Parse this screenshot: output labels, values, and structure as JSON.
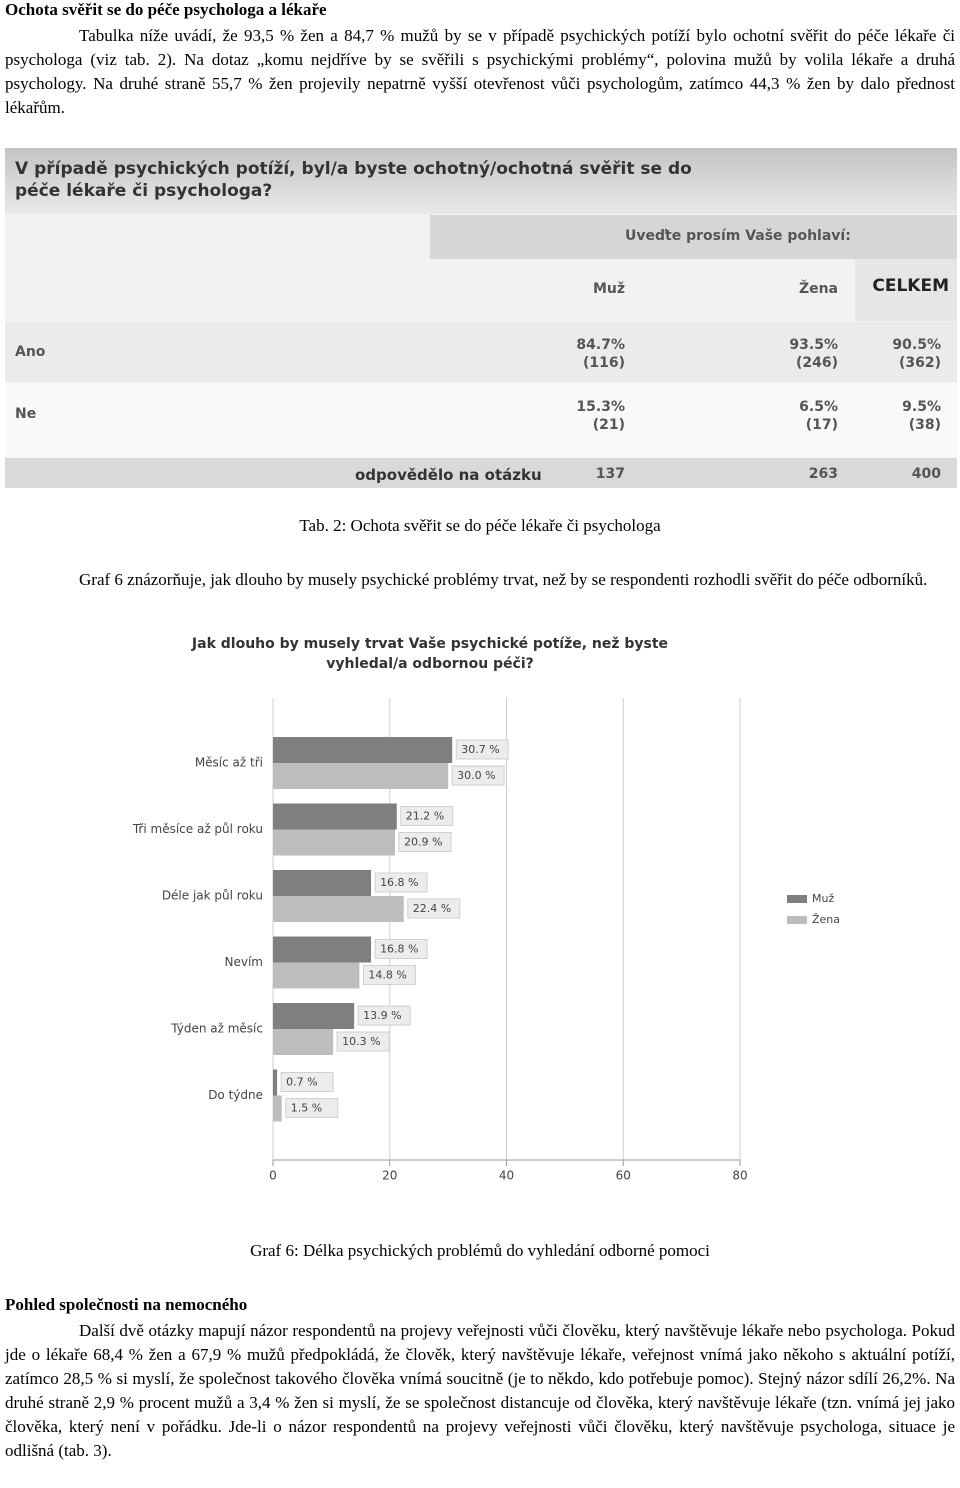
{
  "section1": {
    "heading": "Ochota svěřit se do péče psychologa a lékaře",
    "paragraph": "Tabulka níže uvádí, že 93,5 % žen a 84,7 % mužů by se v případě psychických potíží bylo ochotní svěřit do péče lékaře či psychologa (viz tab. 2). Na dotaz „komu nejdříve by se svěřili s psychickými problémy“, polovina mužů by volila lékaře a druhá psychology. Na druhé straně 55,7 % žen projevily nepatrně vyšší otevřenost vůči psychologům, zatímco 44,3 % žen by dalo přednost lékařům."
  },
  "table": {
    "title": "V případě psychických potíží, byl/a byste ochotný/ochotná svěřit se do péče lékaře či psychologa?",
    "group_header": "Uveďte prosím Vaše pohlaví:",
    "columns": [
      "Muž",
      "Žena",
      "CELKEM"
    ],
    "rows": [
      {
        "label": "Ano",
        "cells": [
          [
            "84.7%",
            "(116)"
          ],
          [
            "93.5%",
            "(246)"
          ],
          [
            "90.5%",
            "(362)"
          ]
        ]
      },
      {
        "label": "Ne",
        "cells": [
          [
            "15.3%",
            "(21)"
          ],
          [
            "6.5%",
            "(17)"
          ],
          [
            "9.5%",
            "(38)"
          ]
        ]
      }
    ],
    "total": {
      "label": "odpovědělo na otázku",
      "values": [
        137,
        263,
        400
      ]
    },
    "caption": "Tab. 2: Ochota svěřit se do péče lékaře či psychologa"
  },
  "intro_chart": "Graf 6 znázorňuje, jak dlouho by musely psychické problémy trvat, než by se respondenti rozhodli svěřit do péče odborníků.",
  "chart_data": {
    "type": "bar",
    "orientation": "horizontal",
    "title": "Jak dlouho by musely trvat Vaše psychické potíže, než byste vyhledal/a odbornou péči?",
    "categories": [
      "Měsíc až tři",
      "Tři měsíce až půl roku",
      "Déle jak půl roku",
      "Nevím",
      "Týden až měsíc",
      "Do týdne"
    ],
    "series": [
      {
        "name": "Muž",
        "color": "#7f7f7f",
        "values": [
          30.7,
          21.2,
          16.8,
          16.8,
          13.9,
          0.7
        ],
        "value_labels": [
          "30.7 %",
          "21.2 %",
          "16.8 %",
          "16.8 %",
          "13.9 %",
          "0.7 %"
        ]
      },
      {
        "name": "Žena",
        "color": "#bdbdbd",
        "values": [
          30.0,
          20.9,
          22.4,
          14.8,
          10.3,
          1.5
        ],
        "value_labels": [
          "30.0 %",
          "20.9 %",
          "22.4 %",
          "14.8 %",
          "10.3 %",
          "1.5 %"
        ]
      }
    ],
    "xlim": [
      0,
      80
    ],
    "xticks": [
      0,
      20,
      40,
      60,
      80
    ],
    "grid": true,
    "legend": "right"
  },
  "chart_caption": "Graf 6: Délka psychických problémů do vyhledání odborné pomoci",
  "section2": {
    "heading": "Pohled společnosti na nemocného",
    "paragraph": "Další dvě otázky mapují názor respondentů na projevy veřejnosti vůči člověku, který navštěvuje lékaře nebo psychologa. Pokud jde o lékaře 68,4 % žen a 67,9 % mužů předpokládá, že člověk, který navštěvuje lékaře, veřejnost vnímá jako někoho s aktuální potíží, zatímco 28,5 % si myslí, že společnost takového člověka vnímá soucitně (je to někdo, kdo potřebuje pomoc). Stejný názor sdílí 26,2%. Na druhé straně 2,9 % procent mužů a 3,4 % žen si myslí, že se společnost distancuje od člověka, který navštěvuje lékaře (tzn. vnímá jej jako člověka, který není v pořádku. Jde-li o názor respondentů na projevy veřejnosti vůči člověku, který navštěvuje psychologa, situace je odlišná (tab. 3)."
  }
}
